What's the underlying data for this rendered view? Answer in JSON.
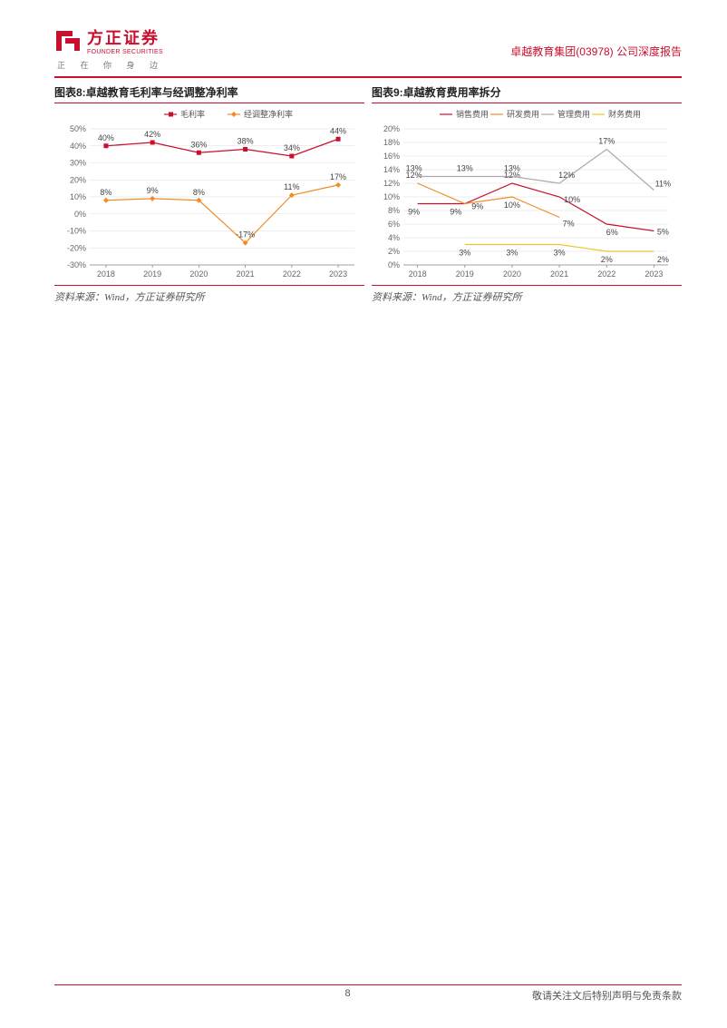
{
  "header": {
    "logo_cn": "方正证券",
    "logo_en": "FOUNDER SECURITIES",
    "tagline": "正 在 你 身 边",
    "right": "卓越教育集团(03978) 公司深度报告",
    "logo_color": "#c8102e"
  },
  "chart8": {
    "title": "图表8:卓越教育毛利率与经调整净利率",
    "source": "资料来源：Wind，方正证券研究所",
    "type": "line",
    "categories": [
      "2018",
      "2019",
      "2020",
      "2021",
      "2022",
      "2023"
    ],
    "ylim": [
      -30,
      50
    ],
    "ytick_step": 10,
    "ytick_suffix": "%",
    "background_color": "#ffffff",
    "grid_color": "#dcdcdc",
    "axis_color": "#888888",
    "label_fontsize": 9,
    "series": [
      {
        "name": "毛利率",
        "color": "#c8102e",
        "marker": "square",
        "marker_size": 5,
        "line_width": 1.2,
        "values": [
          40,
          42,
          36,
          38,
          34,
          44
        ],
        "labels": [
          "40%",
          "42%",
          "36%",
          "38%",
          "34%",
          "44%"
        ]
      },
      {
        "name": "经调整净利率",
        "color": "#f08c28",
        "marker": "diamond",
        "marker_size": 5,
        "line_width": 1.2,
        "values": [
          8,
          9,
          8,
          -17,
          11,
          17
        ],
        "labels": [
          "8%",
          "9%",
          "8%",
          "-17%",
          "11%",
          "17%"
        ]
      }
    ]
  },
  "chart9": {
    "title": "图表9:卓越教育费用率拆分",
    "source": "资料来源：Wind，方正证券研究所",
    "type": "line",
    "categories": [
      "2018",
      "2019",
      "2020",
      "2021",
      "2022",
      "2023"
    ],
    "ylim": [
      0,
      20
    ],
    "ytick_step": 2,
    "ytick_suffix": "%",
    "background_color": "#ffffff",
    "grid_color": "#dcdcdc",
    "axis_color": "#888888",
    "label_fontsize": 9,
    "series": [
      {
        "name": "销售费用",
        "color": "#c8102e",
        "line_width": 1.2,
        "values": [
          9,
          9,
          12,
          10,
          6,
          5
        ],
        "labels": [
          "9%",
          "9%",
          "12%",
          "10%",
          "6%",
          "5%"
        ],
        "label_offset": [
          [
            -4,
            12
          ],
          [
            -10,
            12
          ],
          [
            0,
            -6
          ],
          [
            14,
            6
          ],
          [
            6,
            12
          ],
          [
            10,
            4
          ]
        ]
      },
      {
        "name": "研发费用",
        "color": "#f08c28",
        "line_width": 1.2,
        "values": [
          12,
          9,
          10,
          7,
          null,
          null
        ],
        "labels": [
          "12%",
          "9%",
          "10%",
          "7%",
          "",
          ""
        ],
        "label_offset": [
          [
            -4,
            -6
          ],
          [
            14,
            6
          ],
          [
            0,
            12
          ],
          [
            10,
            10
          ],
          [
            0,
            0
          ],
          [
            0,
            0
          ]
        ]
      },
      {
        "name": "管理费用",
        "color": "#aaaaaa",
        "line_width": 1.2,
        "values": [
          13,
          13,
          13,
          12,
          17,
          11
        ],
        "labels": [
          "13%",
          "13%",
          "13%",
          "12%",
          "17%",
          "11%"
        ],
        "label_offset": [
          [
            -4,
            -6
          ],
          [
            0,
            -6
          ],
          [
            0,
            -6
          ],
          [
            8,
            -6
          ],
          [
            0,
            -6
          ],
          [
            10,
            -4
          ]
        ]
      },
      {
        "name": "财务费用",
        "color": "#e8c82a",
        "line_width": 1.2,
        "values": [
          null,
          3,
          3,
          3,
          2,
          2
        ],
        "labels": [
          "",
          "3%",
          "3%",
          "3%",
          "2%",
          "2%"
        ],
        "label_offset": [
          [
            0,
            0
          ],
          [
            0,
            12
          ],
          [
            0,
            12
          ],
          [
            0,
            12
          ],
          [
            0,
            12
          ],
          [
            10,
            12
          ]
        ]
      }
    ]
  },
  "footer": {
    "page": "8",
    "disclaimer": "敬请关注文后特别声明与免责条款"
  }
}
